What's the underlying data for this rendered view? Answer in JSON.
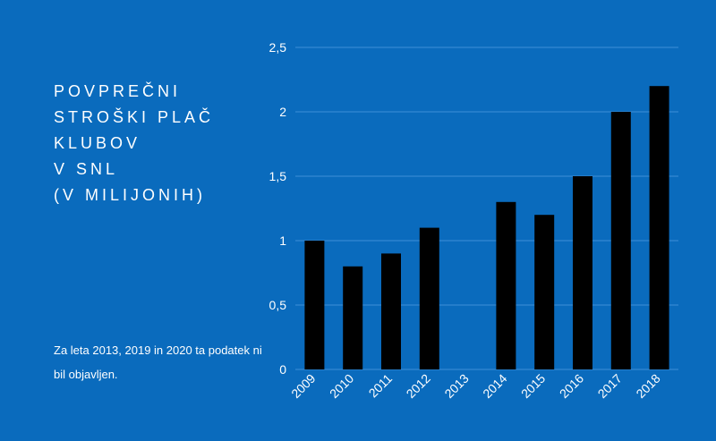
{
  "chart_data": {
    "type": "bar",
    "title_lines": [
      "POVPREČNI",
      "STROŠKI PLAČ",
      "KLUBOV",
      "V SNL",
      "(V MILIJONIH)"
    ],
    "note": "Za leta 2013, 2019 in 2020 ta podatek ni bil objavljen.",
    "categories": [
      "2009",
      "2010",
      "2011",
      "2012",
      "2013",
      "2014",
      "2015",
      "2016",
      "2017",
      "2018"
    ],
    "values": [
      1.0,
      0.8,
      0.9,
      1.1,
      null,
      1.3,
      1.2,
      1.5,
      2.0,
      2.2
    ],
    "ylim": [
      0,
      2.5
    ],
    "y_ticks": [
      0,
      0.5,
      1,
      1.5,
      2,
      2.5
    ],
    "y_tick_labels": [
      "0",
      "0,5",
      "1",
      "1,5",
      "2",
      "2,5"
    ],
    "grid": true,
    "colors": {
      "background": "#0a6bbd",
      "bar": "#000000",
      "grid": "#3f8fd6",
      "text": "#ffffff"
    }
  }
}
